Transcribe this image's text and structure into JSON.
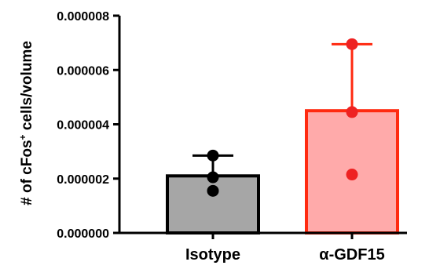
{
  "chart_data": {
    "type": "bar",
    "title": "",
    "ylabel": "# of cFos",
    "ylabel_superscript": "+",
    "ylabel_suffix": " cells/volume",
    "xlabel": "",
    "categories": [
      "Isotype",
      "α-GDF15"
    ],
    "values": [
      2.1e-06,
      4.5e-06
    ],
    "error_upper": [
      2.85e-06,
      6.95e-06
    ],
    "points": [
      [
        2.85e-06,
        2.05e-06,
        1.55e-06
      ],
      [
        6.95e-06,
        4.45e-06,
        2.15e-06
      ]
    ],
    "ylim": [
      0,
      8e-06
    ],
    "yticks": [
      0,
      2e-06,
      4e-06,
      6e-06,
      8e-06
    ],
    "ytick_labels": [
      "0.000000",
      "0.000002",
      "0.000004",
      "0.000006",
      "0.000008"
    ],
    "grid": false,
    "legend": "none",
    "colors": {
      "bar_fill": [
        "#a6a6a6",
        "#ffaaaa"
      ],
      "bar_stroke": [
        "#000000",
        "#ff2a10"
      ],
      "point": [
        "#000000",
        "#ee2222"
      ],
      "error": [
        "#000000",
        "#ff2a10"
      ],
      "axis": "#000000"
    }
  }
}
